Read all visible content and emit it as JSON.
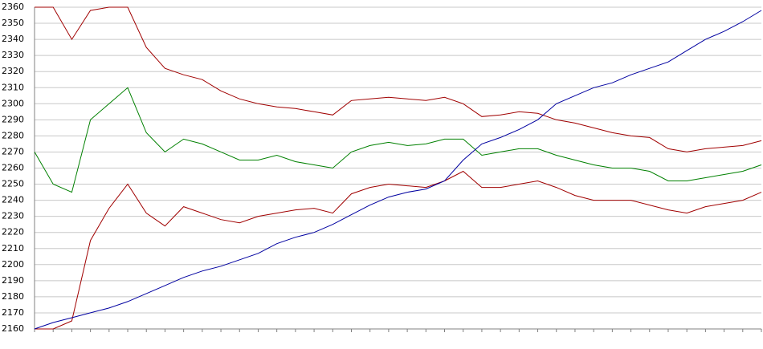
{
  "chart_data": {
    "type": "line",
    "categories": [
      null,
      null,
      null,
      null,
      null,
      null,
      null,
      null,
      null,
      null,
      null,
      null,
      null,
      null,
      null,
      null,
      null,
      null,
      null,
      null,
      null,
      null,
      null,
      null,
      null,
      null,
      null,
      null,
      null,
      null,
      null,
      null,
      null,
      null,
      null,
      null,
      null,
      null,
      null,
      null
    ],
    "ylim": [
      2160,
      2360
    ],
    "yticks": [
      2160,
      2170,
      2180,
      2190,
      2200,
      2210,
      2220,
      2230,
      2240,
      2250,
      2260,
      2270,
      2280,
      2290,
      2300,
      2310,
      2320,
      2330,
      2340,
      2350,
      2360
    ],
    "grid": true,
    "series": [
      {
        "color": "#a00000",
        "values": [
          2360,
          2360,
          2340,
          2358,
          2360,
          2360,
          2335,
          2322,
          2318,
          2315,
          2308,
          2303,
          2300,
          2298,
          2297,
          2295,
          2293,
          2302,
          2303,
          2304,
          2303,
          2302,
          2304,
          2300,
          2292,
          2293,
          2295,
          2294,
          2290,
          2288,
          2285,
          2282,
          2280,
          2279,
          2272,
          2270,
          2272,
          2273,
          2274,
          2277
        ]
      },
      {
        "color": "#008000",
        "values": [
          2270,
          2250,
          2245,
          2290,
          2300,
          2310,
          2282,
          2270,
          2278,
          2275,
          2270,
          2265,
          2265,
          2268,
          2264,
          2262,
          2260,
          2270,
          2274,
          2276,
          2274,
          2275,
          2278,
          2278,
          2268,
          2270,
          2272,
          2272,
          2268,
          2265,
          2262,
          2260,
          2260,
          2258,
          2252,
          2252,
          2254,
          2256,
          2258,
          2262
        ]
      },
      {
        "color": "#a00000",
        "values": [
          2160,
          2160,
          2165,
          2215,
          2235,
          2250,
          2232,
          2224,
          2236,
          2232,
          2228,
          2226,
          2230,
          2232,
          2234,
          2235,
          2232,
          2244,
          2248,
          2250,
          2249,
          2248,
          2252,
          2258,
          2248,
          2248,
          2250,
          2252,
          2248,
          2243,
          2240,
          2240,
          2240,
          2237,
          2234,
          2232,
          2236,
          2238,
          2240,
          2245
        ]
      },
      {
        "color": "#0000a0",
        "values": [
          2160,
          2164,
          2167,
          2170,
          2173,
          2177,
          2182,
          2187,
          2192,
          2196,
          2199,
          2203,
          2207,
          2213,
          2217,
          2220,
          2225,
          2231,
          2237,
          2242,
          2245,
          2247,
          2252,
          2265,
          2275,
          2279,
          2284,
          2290,
          2300,
          2305,
          2310,
          2313,
          2318,
          2322,
          2326,
          2333,
          2340,
          2345,
          2351,
          2358
        ]
      }
    ]
  }
}
